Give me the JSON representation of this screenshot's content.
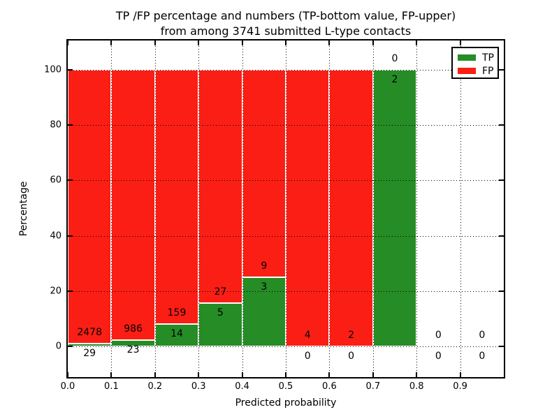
{
  "chart_data": {
    "type": "bar",
    "stacked": true,
    "title_lines": [
      "TP /FP percentage and numbers (TP-bottom value, FP-upper)",
      "from among 3741 submitted L-type contacts"
    ],
    "xlabel": "Predicted probability",
    "ylabel": "Percentage",
    "xlim": [
      0.0,
      1.0
    ],
    "ylim": [
      -11,
      110.5
    ],
    "xticks": [
      "0.0",
      "0.1",
      "0.2",
      "0.3",
      "0.4",
      "0.5",
      "0.6",
      "0.7",
      "0.8",
      "0.9"
    ],
    "yticks": [
      "0",
      "20",
      "40",
      "60",
      "80",
      "100"
    ],
    "grid": {
      "style": "dotted",
      "color": "#000000",
      "x_positions": [
        0.1,
        0.2,
        0.3,
        0.4,
        0.5,
        0.6,
        0.7,
        0.8,
        0.9
      ],
      "y_positions": [
        0,
        20,
        40,
        60,
        80,
        100
      ]
    },
    "total_submitted": 3741,
    "legend": {
      "position": "upper-right",
      "entries": [
        {
          "label": "TP",
          "color": "#268c26"
        },
        {
          "label": "FP",
          "color": "#fb1e15"
        }
      ]
    },
    "bins": [
      {
        "x0": 0.0,
        "x1": 0.1,
        "tp_count": 29,
        "fp_count": 2478,
        "tp_pct": 1.16,
        "has_bar": true
      },
      {
        "x0": 0.1,
        "x1": 0.2,
        "tp_count": 23,
        "fp_count": 986,
        "tp_pct": 2.28,
        "has_bar": true
      },
      {
        "x0": 0.2,
        "x1": 0.3,
        "tp_count": 14,
        "fp_count": 159,
        "tp_pct": 8.09,
        "has_bar": true
      },
      {
        "x0": 0.3,
        "x1": 0.4,
        "tp_count": 5,
        "fp_count": 27,
        "tp_pct": 15.63,
        "has_bar": true
      },
      {
        "x0": 0.4,
        "x1": 0.5,
        "tp_count": 3,
        "fp_count": 9,
        "tp_pct": 25.0,
        "has_bar": true
      },
      {
        "x0": 0.5,
        "x1": 0.6,
        "tp_count": 0,
        "fp_count": 4,
        "tp_pct": 0,
        "has_bar": true
      },
      {
        "x0": 0.6,
        "x1": 0.7,
        "tp_count": 0,
        "fp_count": 2,
        "tp_pct": 0,
        "has_bar": true
      },
      {
        "x0": 0.7,
        "x1": 0.8,
        "tp_count": 2,
        "fp_count": 0,
        "tp_pct": 100,
        "has_bar": true
      },
      {
        "x0": 0.8,
        "x1": 0.9,
        "tp_count": 0,
        "fp_count": 0,
        "tp_pct": 0,
        "has_bar": false
      },
      {
        "x0": 0.9,
        "x1": 1.0,
        "tp_count": 0,
        "fp_count": 0,
        "tp_pct": 0,
        "has_bar": false
      }
    ],
    "colors": {
      "tp": "#268c26",
      "fp": "#fb1e15",
      "background": "#ffffff",
      "text": "#000000"
    }
  }
}
